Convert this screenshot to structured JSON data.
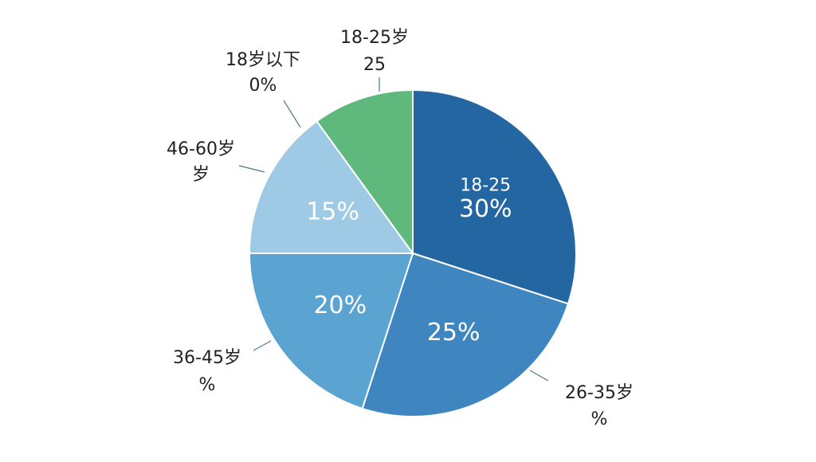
{
  "chart_data": {
    "type": "pie",
    "values": [
      30,
      25,
      20,
      15,
      10
    ],
    "value_labels": [
      "30%",
      "25%",
      "20%",
      "15%",
      null
    ],
    "colors": [
      "#2366a2",
      "#3f85bf",
      "#5ba4d1",
      "#9fcae5",
      "#5fb97c"
    ],
    "slice_text": "18-25",
    "annotations": [
      {
        "lines": [
          "18-25岁",
          "25"
        ]
      },
      {
        "lines": [
          "18岁以下",
          "0%"
        ]
      },
      {
        "lines": [
          "46-60岁",
          "岁"
        ]
      },
      {
        "lines": [
          "36-45岁",
          "%"
        ]
      },
      {
        "lines": [
          "26-35岁",
          "%"
        ]
      }
    ]
  }
}
